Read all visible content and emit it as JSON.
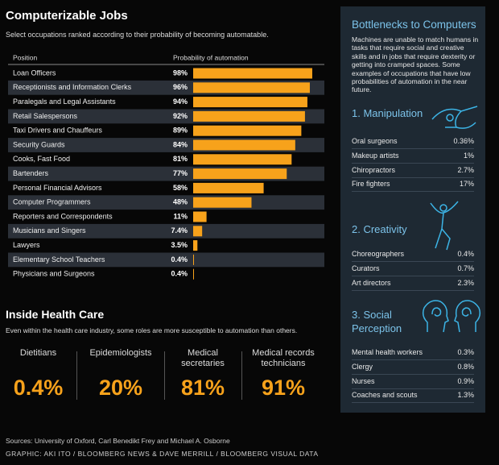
{
  "title": "Computerizable Jobs",
  "subtitle": "Select occupations ranked according to their probability of becoming automatable.",
  "chart_data": {
    "type": "bar",
    "orientation": "horizontal",
    "category_header": "Position",
    "value_header": "Probability of automation",
    "categories": [
      "Loan Officers",
      "Receptionists and Information Clerks",
      "Paralegals and Legal Assistants",
      "Retail Salespersons",
      "Taxi Drivers and Chauffeurs",
      "Security Guards",
      "Cooks, Fast Food",
      "Bartenders",
      "Personal Financial Advisors",
      "Computer Programmers",
      "Reporters and Correspondents",
      "Musicians and Singers",
      "Lawyers",
      "Elementary School Teachers",
      "Physicians and Surgeons"
    ],
    "values": [
      98,
      96,
      94,
      92,
      89,
      84,
      81,
      77,
      58,
      48,
      11,
      7.4,
      3.5,
      0.4,
      0.4
    ],
    "value_labels": [
      "98%",
      "96%",
      "94%",
      "92%",
      "89%",
      "84%",
      "81%",
      "77%",
      "58%",
      "48%",
      "11%",
      "7.4%",
      "3.5%",
      "0.4%",
      "0.4%"
    ],
    "color": "#f7a21b",
    "xlim": [
      0,
      100
    ]
  },
  "health_care": {
    "title": "Inside Health Care",
    "subtitle": "Even within the health care industry, some roles are more susceptible to automation than others.",
    "stats": [
      {
        "label": "Dietitians",
        "value": "0.4%"
      },
      {
        "label": "Epidemiologists",
        "value": "20%"
      },
      {
        "label": "Medical secretaries",
        "value": "81%"
      },
      {
        "label": "Medical records technicians",
        "value": "91%"
      }
    ]
  },
  "sidebar": {
    "title": "Bottlenecks to Computers",
    "text": "Machines are unable to match humans in tasks that require social and creative skills and in jobs that require dexterity or getting into cramped spaces. Some examples of occupations that have low probabilities of automation in the near future.",
    "sections": [
      {
        "title": "1. Manipulation",
        "rows": [
          [
            "Oral surgeons",
            "0.36%"
          ],
          [
            "Makeup artists",
            "1%"
          ],
          [
            "Chiropractors",
            "2.7%"
          ],
          [
            "Fire fighters",
            "17%"
          ]
        ]
      },
      {
        "title": "2. Creativity",
        "rows": [
          [
            "Choreographers",
            "0.4%"
          ],
          [
            "Curators",
            "0.7%"
          ],
          [
            "Art directors",
            "2.3%"
          ]
        ]
      },
      {
        "title": "3. Social Perception",
        "rows": [
          [
            "Mental health workers",
            "0.3%"
          ],
          [
            "Clergy",
            "0.8%"
          ],
          [
            "Nurses",
            "0.9%"
          ],
          [
            "Coaches and scouts",
            "1.3%"
          ]
        ]
      }
    ]
  },
  "footer": {
    "sources": "Sources: University of Oxford, Carl Benedikt Frey and Michael A. Osborne",
    "credit": "GRAPHIC: AKI ITO / BLOOMBERG NEWS & DAVE MERRILL / BLOOMBERG VISUAL DATA"
  }
}
